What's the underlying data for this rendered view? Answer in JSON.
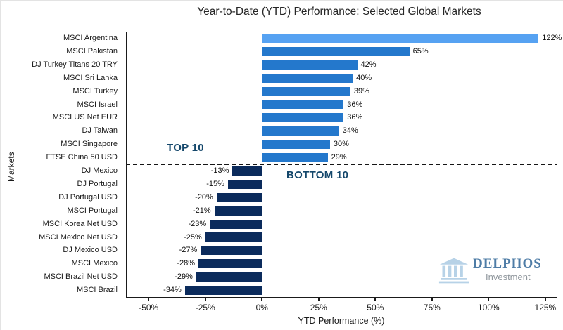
{
  "logo": {
    "name": "DELPHOS",
    "subtitle": "Investment",
    "text_color": "#4E7CA6",
    "subtitle_color": "#90979D",
    "icon_color": "#B7D2E7"
  },
  "chart_data": {
    "type": "bar",
    "orientation": "horizontal",
    "title": "Year-to-Date (YTD) Performance: Selected Global Markets",
    "xlabel": "YTD Performance (%)",
    "ylabel": "Markets",
    "xlim": [
      -60,
      130
    ],
    "xticks": [
      -50,
      -25,
      0,
      25,
      50,
      75,
      100,
      125
    ],
    "xtick_labels": [
      "-50%",
      "-25%",
      "0%",
      "25%",
      "50%",
      "75%",
      "100%",
      "125%"
    ],
    "categories": [
      "MSCI Argentina",
      "MSCI Pakistan",
      "DJ Turkey Titans 20 TRY",
      "MSCI Sri Lanka",
      "MSCI Turkey",
      "MSCI Israel",
      "MSCI US Net EUR",
      "DJ Taiwan",
      "MSCI Singapore",
      "FTSE China 50 USD",
      "DJ Mexico",
      "DJ Portugal",
      "DJ Portugal USD",
      "MSCI Portugal",
      "MSCI Korea Net USD",
      "MSCI Mexico Net USD",
      "DJ Mexico USD",
      "MSCI Mexico",
      "MSCI Brazil Net USD",
      "MSCI Brazil"
    ],
    "values": [
      122,
      65,
      42,
      40,
      39,
      36,
      36,
      34,
      30,
      29,
      -13,
      -15,
      -20,
      -21,
      -23,
      -25,
      -27,
      -28,
      -29,
      -34
    ],
    "labels": [
      "122%",
      "65%",
      "42%",
      "40%",
      "39%",
      "36%",
      "36%",
      "34%",
      "30%",
      "29%",
      "-13%",
      "-15%",
      "-20%",
      "-21%",
      "-23%",
      "-25%",
      "-27%",
      "-28%",
      "-29%",
      "-34%"
    ],
    "annotations": {
      "top10": "TOP 10",
      "bottom10": "BOTTOM 10"
    },
    "separator_after_index": 9,
    "grid": false,
    "colors": {
      "highlight_bar": "#56A2F2",
      "positive_bar": "#2478CC",
      "negative_bar": "#0B2B5C",
      "annotation": "#14476B",
      "axis": "#1A1A1A"
    }
  }
}
